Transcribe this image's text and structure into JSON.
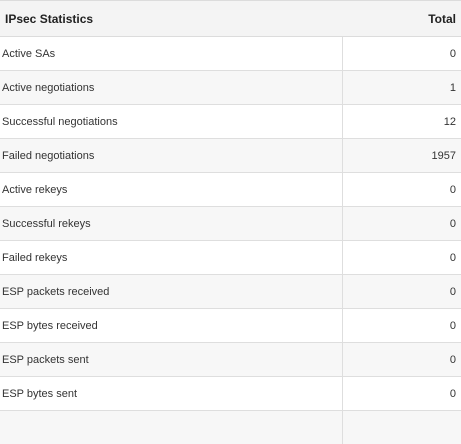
{
  "table": {
    "header": {
      "label": "IPsec Statistics",
      "total": "Total"
    },
    "rows": [
      {
        "label": "Active SAs",
        "value": "0"
      },
      {
        "label": "Active negotiations",
        "value": "1"
      },
      {
        "label": "Successful negotiations",
        "value": "12"
      },
      {
        "label": "Failed negotiations",
        "value": "1957"
      },
      {
        "label": "Active rekeys",
        "value": "0"
      },
      {
        "label": "Successful rekeys",
        "value": "0"
      },
      {
        "label": "Failed rekeys",
        "value": "0"
      },
      {
        "label": "ESP packets received",
        "value": "0"
      },
      {
        "label": "ESP bytes received",
        "value": "0"
      },
      {
        "label": "ESP packets sent",
        "value": "0"
      },
      {
        "label": "ESP bytes sent",
        "value": "0"
      }
    ]
  }
}
